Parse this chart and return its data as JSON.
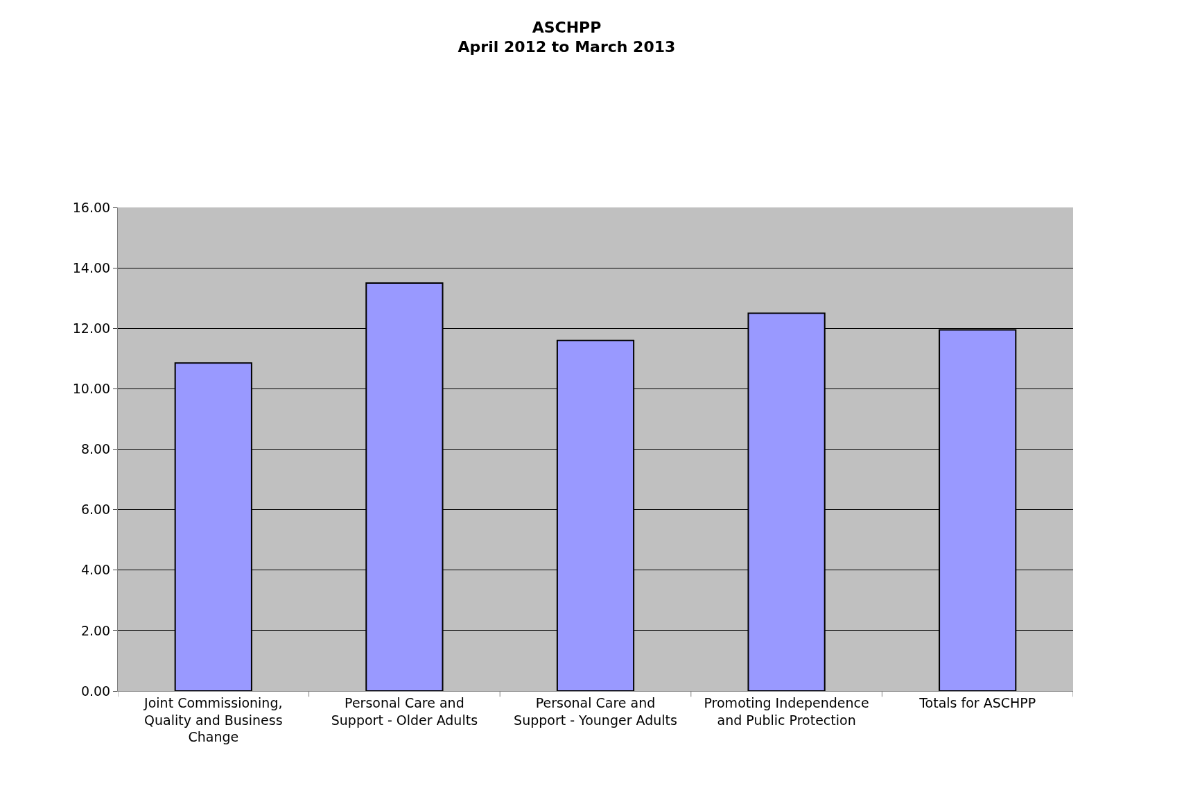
{
  "chart_data": {
    "type": "bar",
    "title": "ASCHPP\nApril 2012 to March 2013",
    "categories": [
      "Joint Commissioning, Quality and Business Change",
      "Personal Care and Support - Older Adults",
      "Personal Care and Support - Younger Adults",
      "Promoting Independence and Public Protection",
      "Totals for ASCHPP"
    ],
    "values": [
      10.85,
      13.5,
      11.6,
      12.5,
      11.95
    ],
    "color": "#9999ff",
    "ylim": [
      0,
      16
    ],
    "yticks": [
      {
        "value": 0,
        "label": "0.00"
      },
      {
        "value": 2,
        "label": "2.00"
      },
      {
        "value": 4,
        "label": "4.00"
      },
      {
        "value": 6,
        "label": "6.00"
      },
      {
        "value": 8,
        "label": "8.00"
      },
      {
        "value": 10,
        "label": "10.00"
      },
      {
        "value": 12,
        "label": "12.00"
      },
      {
        "value": 14,
        "label": "14.00"
      },
      {
        "value": 16,
        "label": "16.00"
      }
    ],
    "grid": "y"
  }
}
